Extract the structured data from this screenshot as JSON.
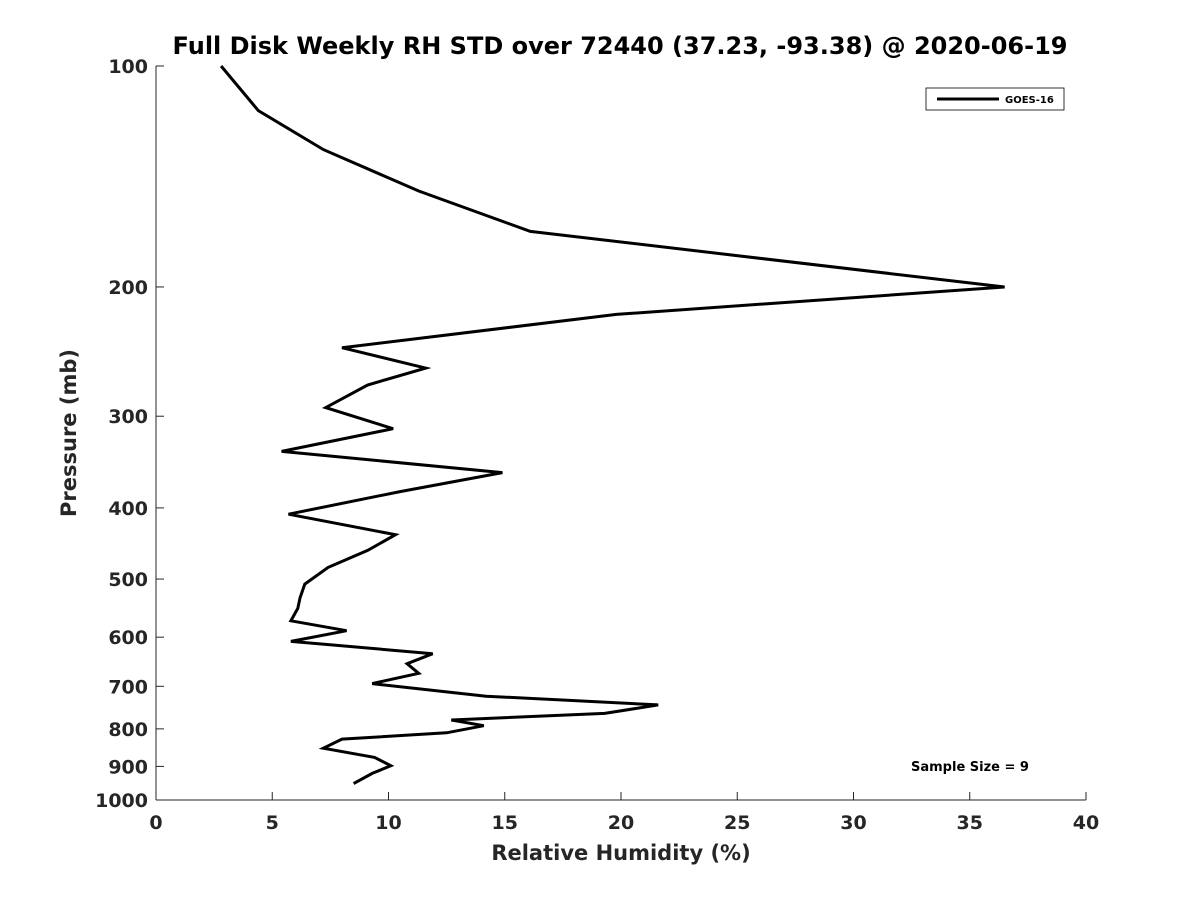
{
  "chart_data": {
    "type": "line",
    "title": "Full Disk Weekly RH STD over 72440 (37.23, -93.38) @ 2020-06-19",
    "xlabel": "Relative Humidity (%)",
    "ylabel": "Pressure (mb)",
    "xlim": [
      0,
      40
    ],
    "ylim": [
      1000,
      100
    ],
    "yscale": "log",
    "x_ticks": [
      0,
      5,
      10,
      15,
      20,
      25,
      30,
      35,
      40
    ],
    "y_ticks": [
      100,
      200,
      300,
      400,
      500,
      600,
      700,
      800,
      900,
      1000
    ],
    "grid": false,
    "legend_position": "top-right",
    "series": [
      {
        "name": "GOES-16",
        "color": "#000000",
        "x": [
          2.8,
          4.4,
          7.2,
          11.3,
          16.1,
          36.5,
          19.8,
          8.0,
          11.6,
          9.1,
          7.3,
          10.2,
          5.4,
          14.9,
          10.5,
          5.7,
          10.3,
          9.1,
          7.4,
          6.4,
          6.2,
          6.1,
          5.8,
          8.2,
          5.8,
          11.9,
          10.8,
          11.3,
          9.3,
          14.2,
          21.6,
          19.3,
          12.7,
          14.1,
          12.5,
          8.0,
          7.2,
          9.4,
          10.1,
          9.3,
          8.5
        ],
        "y": [
          100,
          115,
          130,
          148,
          168,
          200,
          218,
          242,
          258,
          272,
          292,
          312,
          335,
          358,
          380,
          408,
          435,
          457,
          482,
          508,
          530,
          548,
          570,
          588,
          608,
          632,
          652,
          672,
          694,
          722,
          742,
          762,
          778,
          792,
          810,
          826,
          850,
          875,
          898,
          920,
          950
        ]
      }
    ],
    "annotations": [
      "Sample Size = 9"
    ]
  }
}
